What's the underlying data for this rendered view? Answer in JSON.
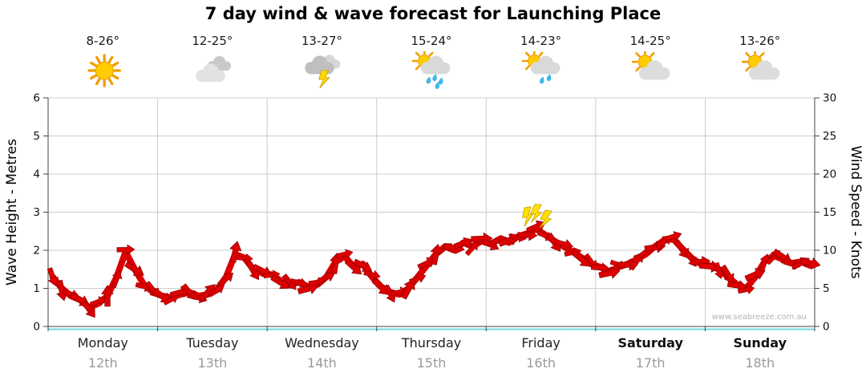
{
  "title": "7 day wind & wave forecast for Launching Place",
  "watermark": "www.seabreeze.com.au",
  "colors": {
    "band": "#dd0000",
    "band_outline": "#8b0000",
    "storm_yellow": "#ffe000",
    "grid": "#cccccc",
    "axis": "#444444",
    "baseline_cyan": "#6fd9d9"
  },
  "days": [
    {
      "name": "Monday",
      "date": "12th",
      "temp": "8-26°",
      "icon": "sunny",
      "weekend": false
    },
    {
      "name": "Tuesday",
      "date": "13th",
      "temp": "12-25°",
      "icon": "cloudy",
      "weekend": false
    },
    {
      "name": "Wednesday",
      "date": "14th",
      "temp": "13-27°",
      "icon": "thunderstorm",
      "weekend": false
    },
    {
      "name": "Thursday",
      "date": "15th",
      "temp": "15-24°",
      "icon": "sun-showers",
      "weekend": false
    },
    {
      "name": "Friday",
      "date": "16th",
      "temp": "14-23°",
      "icon": "sun-rain",
      "weekend": false
    },
    {
      "name": "Saturday",
      "date": "17th",
      "temp": "14-25°",
      "icon": "partly-cloudy",
      "weekend": true
    },
    {
      "name": "Sunday",
      "date": "18th",
      "temp": "13-26°",
      "icon": "partly-cloudy",
      "weekend": true
    }
  ],
  "chart_data": {
    "type": "area",
    "title": "7 day wind & wave forecast for Launching Place",
    "categories": [
      "Monday 12th",
      "Tuesday 13th",
      "Wednesday 14th",
      "Thursday 15th",
      "Friday 16th",
      "Saturday 17th",
      "Sunday 18th"
    ],
    "samples_per_day": 12,
    "left_axis": {
      "label": "Wave Height - Metres",
      "min": 0,
      "max": 6,
      "step": 1
    },
    "right_axis": {
      "label": "Wind Speed - Knots",
      "min": 0,
      "max": 30,
      "step": 5
    },
    "grid": true,
    "legend": "none",
    "series": [
      {
        "name": "Wind speed",
        "units": "knots",
        "values": [
          6.5,
          5,
          4,
          3.5,
          2.5,
          3,
          4,
          6.5,
          9.8,
          7.5,
          5.5,
          4.5,
          4,
          3.8,
          4.2,
          4.5,
          4,
          4.2,
          4.8,
          6.5,
          9.5,
          9,
          7.5,
          7,
          6.8,
          6,
          5.5,
          5.8,
          5.2,
          5.5,
          6.5,
          8.5,
          9.2,
          7.8,
          8.2,
          6.5,
          5.2,
          4.5,
          4.2,
          5,
          6.5,
          8,
          9.5,
          10.5,
          10,
          11,
          10.5,
          11.2,
          10.8,
          11.5,
          11,
          11.8,
          12.2,
          12.8,
          12,
          11.2,
          10.5,
          9.8,
          9,
          8.2,
          7.8,
          7.2,
          7.8,
          8.2,
          8.8,
          9.5,
          10.5,
          11.3,
          11.5,
          10.2,
          9,
          8.2,
          8,
          7.5,
          6.5,
          5.5,
          5,
          6.5,
          8.5,
          9.3,
          8.8,
          8.3,
          8.5,
          8
        ]
      }
    ],
    "storm_marker": {
      "day": "Friday",
      "symbol": "lightning",
      "count": 3
    }
  }
}
